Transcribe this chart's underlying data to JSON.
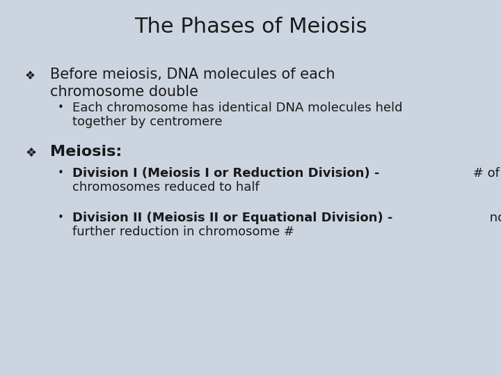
{
  "background_color": "#ccd4e0",
  "title": "The Phases of Meiosis",
  "title_fontsize": 22,
  "title_color": "#1a1a1a",
  "bullet1_symbol": "❖",
  "bullet1_text_line1": "Before meiosis, DNA molecules of each",
  "bullet1_text_line2": "chromosome double",
  "bullet1_fontsize": 15,
  "sub_bullet1_text_line1": "Each chromosome has identical DNA molecules held",
  "sub_bullet1_text_line2": "together by centromere",
  "sub_bullet1_fontsize": 13,
  "bullet2_symbol": "❖",
  "bullet2_text": "Meiosis:",
  "bullet2_fontsize": 16,
  "div1_bold": "Division I (Meiosis I or Reduction Division) -",
  "div1_normal": " # of",
  "div1_line2": "chromosomes reduced to half",
  "div1_fontsize": 13,
  "div2_bold": "Division II (Meiosis II or Equational Division) -",
  "div2_normal": " no",
  "div2_line2": "further reduction in chromosome #",
  "div2_fontsize": 13,
  "text_color": "#1a1a1a"
}
